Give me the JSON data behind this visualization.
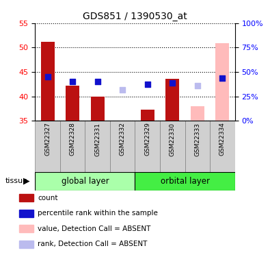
{
  "title": "GDS851 / 1390530_at",
  "samples": [
    "GSM22327",
    "GSM22328",
    "GSM22331",
    "GSM22332",
    "GSM22329",
    "GSM22330",
    "GSM22333",
    "GSM22334"
  ],
  "bar_values": [
    51.2,
    42.2,
    40.0,
    null,
    37.3,
    43.6,
    null,
    null
  ],
  "bar_absent_values": [
    null,
    null,
    null,
    null,
    null,
    null,
    38.0,
    50.9
  ],
  "rank_values": [
    44.0,
    43.0,
    43.0,
    null,
    42.5,
    42.8,
    null,
    43.8
  ],
  "rank_absent_values": [
    null,
    null,
    null,
    41.4,
    null,
    null,
    42.2,
    null
  ],
  "bar_color": "#bb1111",
  "bar_absent_color": "#ffbbbb",
  "rank_color": "#1111cc",
  "rank_absent_color": "#bbbbee",
  "ylim_left": [
    35,
    55
  ],
  "ylim_right": [
    0,
    100
  ],
  "yticks_left": [
    35,
    40,
    45,
    50,
    55
  ],
  "yticks_right": [
    0,
    25,
    50,
    75,
    100
  ],
  "ytick_labels_right": [
    "0%",
    "25%",
    "50%",
    "75%",
    "100%"
  ],
  "global_color": "#aaffaa",
  "orbital_color": "#44ee44",
  "legend_items": [
    {
      "label": "count",
      "color": "#bb1111"
    },
    {
      "label": "percentile rank within the sample",
      "color": "#1111cc"
    },
    {
      "label": "value, Detection Call = ABSENT",
      "color": "#ffbbbb"
    },
    {
      "label": "rank, Detection Call = ABSENT",
      "color": "#bbbbee"
    }
  ]
}
